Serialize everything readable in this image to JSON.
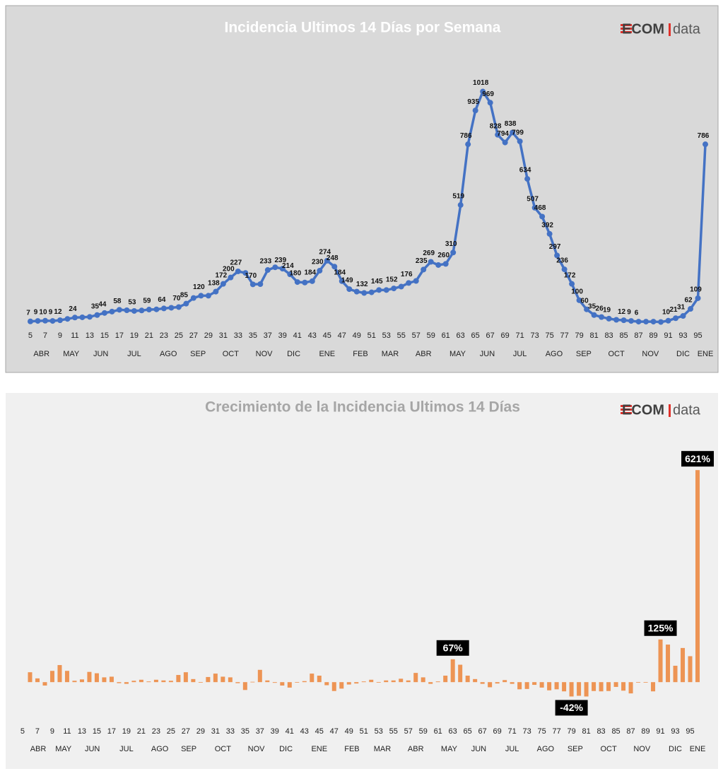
{
  "chart_data": [
    {
      "type": "line",
      "title": "Incidencia Ultimos 14 Días por Semana",
      "logo": [
        "ECOM",
        "data"
      ],
      "color": "#4472c4",
      "x": [
        5,
        6,
        7,
        8,
        9,
        10,
        11,
        12,
        13,
        14,
        15,
        16,
        17,
        18,
        19,
        20,
        21,
        22,
        23,
        24,
        25,
        26,
        27,
        28,
        29,
        30,
        31,
        32,
        33,
        34,
        35,
        36,
        37,
        38,
        39,
        40,
        41,
        42,
        43,
        44,
        45,
        46,
        47,
        48,
        49,
        50,
        51,
        52,
        53,
        54,
        55,
        56,
        57,
        58,
        59,
        60,
        61,
        62,
        63,
        64,
        65,
        66,
        67,
        68,
        69,
        70,
        71,
        72,
        73,
        74,
        75,
        76,
        77,
        78,
        79,
        80,
        81,
        82,
        83,
        84,
        85,
        86,
        87,
        88,
        89,
        90,
        91,
        92,
        93,
        94,
        95,
        96
      ],
      "values": [
        7,
        9,
        10,
        9,
        12,
        18,
        24,
        25,
        27,
        35,
        44,
        50,
        58,
        56,
        53,
        55,
        59,
        60,
        64,
        67,
        70,
        85,
        110,
        120,
        120,
        138,
        172,
        200,
        227,
        220,
        170,
        171,
        233,
        245,
        239,
        214,
        180,
        178,
        184,
        230,
        274,
        248,
        184,
        149,
        138,
        132,
        135,
        145,
        145,
        152,
        160,
        176,
        185,
        235,
        269,
        255,
        260,
        310,
        519,
        786,
        935,
        1018,
        969,
        828,
        794,
        838,
        799,
        634,
        507,
        468,
        392,
        297,
        236,
        172,
        100,
        60,
        35,
        26,
        19,
        14,
        12,
        9,
        6,
        6,
        6,
        4.4,
        10,
        21,
        31,
        62,
        109,
        786
      ],
      "value_labels": [
        "7",
        "9",
        "10",
        "9",
        "12",
        null,
        "24",
        null,
        null,
        "35",
        "44",
        null,
        "58",
        null,
        "53",
        null,
        "59",
        null,
        "64",
        null,
        "70",
        "85",
        null,
        "120",
        null,
        "138",
        "172",
        "200",
        "227",
        null,
        "170",
        null,
        "233",
        null,
        "239",
        "214",
        "180",
        null,
        "184",
        "230",
        "274",
        "248",
        "184",
        "149",
        null,
        "132",
        null,
        "145",
        null,
        "152",
        null,
        "176",
        null,
        "235",
        "269",
        null,
        "260",
        "310",
        "519",
        "786",
        "935",
        "1018",
        "969",
        "828",
        "794",
        "838",
        "799",
        "634",
        "507",
        "468",
        "392",
        "297",
        "236",
        "172",
        "100",
        "60",
        "35",
        "26",
        "19",
        null,
        "12",
        "9",
        "6",
        null,
        null,
        null,
        "10",
        "21",
        "31",
        "62",
        "109",
        "786"
      ],
      "xlim": [
        4,
        97
      ],
      "ylim": [
        0,
        1200
      ],
      "xticks": [
        5,
        7,
        9,
        11,
        13,
        15,
        17,
        19,
        21,
        23,
        25,
        27,
        29,
        31,
        33,
        35,
        37,
        39,
        41,
        43,
        45,
        47,
        49,
        51,
        53,
        55,
        57,
        59,
        61,
        63,
        65,
        67,
        69,
        71,
        73,
        75,
        77,
        79,
        81,
        83,
        85,
        87,
        89,
        91,
        93,
        95
      ],
      "months": [
        {
          "label": "ABR",
          "x": 6.5
        },
        {
          "label": "MAY",
          "x": 10.5
        },
        {
          "label": "JUN",
          "x": 14.5
        },
        {
          "label": "JUL",
          "x": 19
        },
        {
          "label": "AGO",
          "x": 23.6
        },
        {
          "label": "SEP",
          "x": 27.6
        },
        {
          "label": "OCT",
          "x": 32
        },
        {
          "label": "NOV",
          "x": 36.5
        },
        {
          "label": "DIC",
          "x": 40.5
        },
        {
          "label": "ENE",
          "x": 45
        },
        {
          "label": "FEB",
          "x": 49.5
        },
        {
          "label": "MAR",
          "x": 53.5
        },
        {
          "label": "ABR",
          "x": 58
        },
        {
          "label": "MAY",
          "x": 62.6
        },
        {
          "label": "JUN",
          "x": 66.6
        },
        {
          "label": "JUL",
          "x": 71
        },
        {
          "label": "AGO",
          "x": 75.6
        },
        {
          "label": "SEP",
          "x": 79.6
        },
        {
          "label": "OCT",
          "x": 84
        },
        {
          "label": "NOV",
          "x": 88.6
        },
        {
          "label": "DIC",
          "x": 93
        },
        {
          "label": "ENE",
          "x": 96
        }
      ]
    },
    {
      "type": "bar",
      "title": "Crecimiento de la Incidencia Ultimos 14 Días",
      "logo": [
        "ECOM",
        "data"
      ],
      "color": "#ed9454",
      "x": [
        6,
        7,
        8,
        9,
        10,
        11,
        12,
        13,
        14,
        15,
        16,
        17,
        18,
        19,
        20,
        21,
        22,
        23,
        24,
        25,
        26,
        27,
        28,
        29,
        30,
        31,
        32,
        33,
        34,
        35,
        36,
        37,
        38,
        39,
        40,
        41,
        42,
        43,
        44,
        45,
        46,
        47,
        48,
        49,
        50,
        51,
        52,
        53,
        54,
        55,
        56,
        57,
        58,
        59,
        60,
        61,
        62,
        63,
        64,
        65,
        66,
        67,
        68,
        69,
        70,
        71,
        72,
        73,
        74,
        75,
        76,
        77,
        78,
        79,
        80,
        81,
        82,
        83,
        84,
        85,
        86,
        87,
        88,
        89,
        90,
        91,
        92,
        93,
        94,
        95,
        96
      ],
      "values": [
        29,
        11,
        -10,
        33,
        50,
        33,
        4,
        8,
        30,
        26,
        14,
        16,
        -3,
        -5,
        4,
        7,
        2,
        7,
        5,
        4,
        21,
        29,
        9,
        0,
        15,
        25,
        16,
        14,
        -3,
        -23,
        1,
        36,
        5,
        -2,
        -10,
        -16,
        -1,
        3,
        25,
        19,
        -9,
        -26,
        -19,
        -7,
        -4,
        2,
        7,
        0,
        5,
        5,
        10,
        5,
        27,
        14,
        -5,
        2,
        19,
        67,
        51,
        19,
        9,
        -5,
        -15,
        -4,
        6,
        -5,
        -21,
        -20,
        -8,
        -16,
        -24,
        -21,
        -27,
        -42,
        -40,
        -42,
        -26,
        -27,
        -26,
        -14,
        -25,
        -33,
        0,
        0,
        -27,
        125,
        110,
        48,
        100,
        76,
        621
      ],
      "value_labels": [
        null,
        null,
        null,
        null,
        null,
        null,
        null,
        null,
        null,
        null,
        null,
        null,
        null,
        null,
        null,
        null,
        null,
        null,
        null,
        null,
        null,
        null,
        null,
        null,
        null,
        null,
        null,
        null,
        null,
        null,
        null,
        null,
        null,
        null,
        null,
        null,
        null,
        null,
        null,
        null,
        null,
        null,
        null,
        null,
        null,
        null,
        null,
        null,
        null,
        null,
        null,
        null,
        null,
        null,
        null,
        null,
        null,
        "67%",
        null,
        null,
        null,
        null,
        null,
        null,
        null,
        null,
        null,
        null,
        null,
        null,
        null,
        null,
        null,
        "-42%",
        null,
        null,
        null,
        null,
        null,
        null,
        null,
        null,
        null,
        null,
        null,
        "125%",
        null,
        null,
        null,
        null,
        "621%"
      ],
      "xlim": [
        4,
        97
      ],
      "ylim": [
        -70,
        700
      ],
      "xticks": [
        5,
        7,
        9,
        11,
        13,
        15,
        17,
        19,
        21,
        23,
        25,
        27,
        29,
        31,
        33,
        35,
        37,
        39,
        41,
        43,
        45,
        47,
        49,
        51,
        53,
        55,
        57,
        59,
        61,
        63,
        65,
        67,
        69,
        71,
        73,
        75,
        77,
        79,
        81,
        83,
        85,
        87,
        89,
        91,
        93,
        95
      ],
      "months": [
        {
          "label": "ABR",
          "x": 7.1
        },
        {
          "label": "MAY",
          "x": 10.5
        },
        {
          "label": "JUN",
          "x": 14.4
        },
        {
          "label": "JUL",
          "x": 19
        },
        {
          "label": "AGO",
          "x": 23.5
        },
        {
          "label": "SEP",
          "x": 27.4
        },
        {
          "label": "OCT",
          "x": 32
        },
        {
          "label": "NOV",
          "x": 36.5
        },
        {
          "label": "DIC",
          "x": 40.5
        },
        {
          "label": "ENE",
          "x": 45
        },
        {
          "label": "FEB",
          "x": 49.4
        },
        {
          "label": "MAR",
          "x": 53.5
        },
        {
          "label": "ABR",
          "x": 58
        },
        {
          "label": "MAY",
          "x": 62.5
        },
        {
          "label": "JUN",
          "x": 66.5
        },
        {
          "label": "JUL",
          "x": 71
        },
        {
          "label": "AGO",
          "x": 75.5
        },
        {
          "label": "SEP",
          "x": 79.5
        },
        {
          "label": "OCT",
          "x": 84
        },
        {
          "label": "NOV",
          "x": 88.5
        },
        {
          "label": "DIC",
          "x": 93
        },
        {
          "label": "ENE",
          "x": 96
        }
      ]
    }
  ]
}
